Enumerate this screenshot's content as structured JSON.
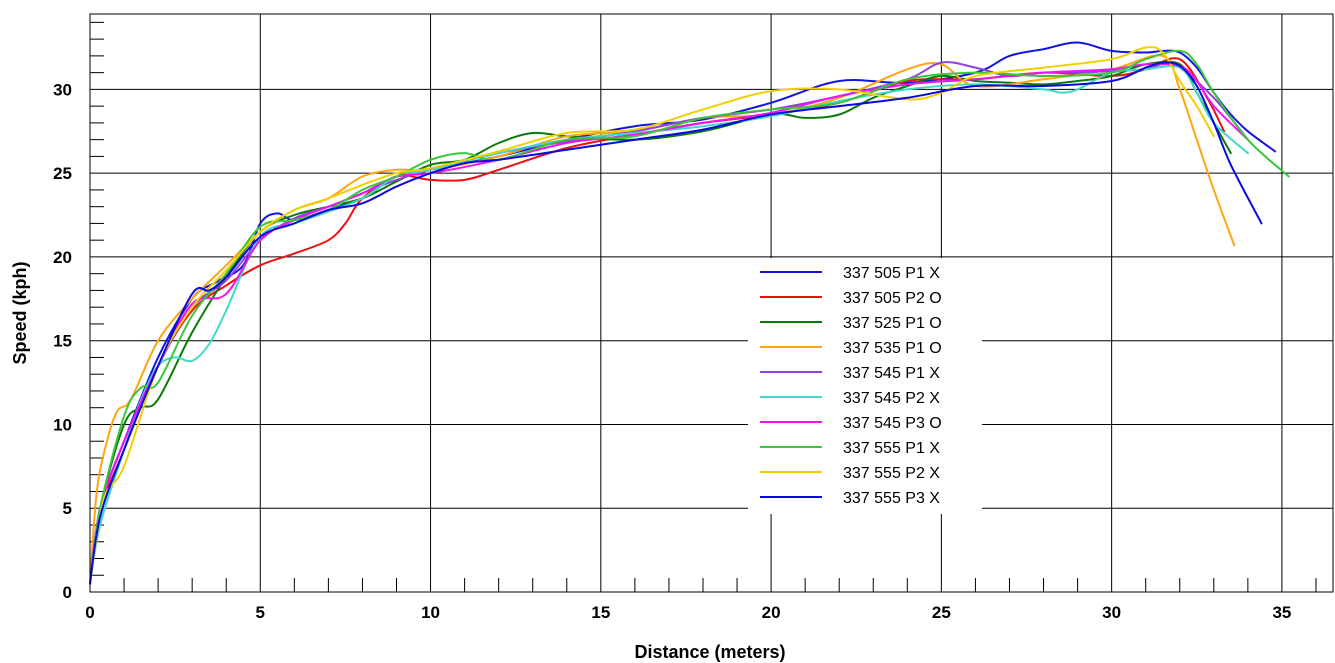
{
  "chart_data": {
    "type": "line",
    "title": "",
    "xlabel": "Distance (meters)",
    "ylabel": "Speed (kph)",
    "xlim": [
      0,
      36.5
    ],
    "ylim": [
      0,
      34.5
    ],
    "x_ticks": [
      0,
      5,
      10,
      15,
      20,
      25,
      30,
      35
    ],
    "y_ticks": [
      0,
      5,
      10,
      15,
      20,
      25,
      30
    ],
    "grid": true,
    "legend_position": "center-right",
    "series": [
      {
        "name": "337 505 P1 X",
        "color": "#1414e0",
        "x": [
          0,
          0.3,
          1,
          2,
          3,
          3.7,
          4.5,
          5,
          5.5,
          6,
          7,
          8,
          9,
          10,
          12,
          14,
          16,
          18,
          20,
          22,
          24,
          26,
          27,
          28,
          29,
          30,
          31,
          31.5,
          32,
          32.5,
          33,
          33.5,
          34,
          34.8
        ],
        "y": [
          0.5,
          5,
          9,
          14,
          17.5,
          18.5,
          19.5,
          22,
          22.6,
          22.2,
          22.8,
          23.5,
          24.8,
          25.2,
          26,
          27,
          27.8,
          28.2,
          29.2,
          30.5,
          30.4,
          31,
          32,
          32.4,
          32.8,
          32.3,
          32.2,
          32.3,
          32.2,
          31.3,
          29.8,
          28.5,
          27.5,
          26.3
        ]
      },
      {
        "name": "337 505 P2 O",
        "color": "#f01010",
        "x": [
          0,
          0.3,
          1,
          2,
          3,
          4,
          5,
          6,
          7,
          7.5,
          8,
          9,
          10,
          11,
          12,
          14,
          16,
          18,
          20,
          22,
          24,
          26,
          28,
          30,
          31,
          32,
          32.8,
          33.3
        ],
        "y": [
          0.5,
          4.8,
          8.5,
          13.5,
          16.8,
          18.3,
          19.5,
          20.2,
          21,
          22,
          23.5,
          24.8,
          24.6,
          24.6,
          25.2,
          26.5,
          27.3,
          28,
          28.5,
          29.2,
          30.5,
          30.6,
          31,
          30.8,
          31.2,
          31.8,
          29.5,
          27.5
        ]
      },
      {
        "name": "337 525 P1 O",
        "color": "#0a7a0a",
        "x": [
          0,
          0.3,
          1,
          1.5,
          2,
          3,
          4,
          5,
          6,
          7,
          8,
          9,
          10,
          11,
          12,
          13,
          14,
          16,
          18,
          20,
          21,
          22,
          23,
          24,
          25,
          26,
          27,
          28,
          29,
          30,
          31,
          32,
          32.5,
          33,
          33.5
        ],
        "y": [
          0.5,
          5,
          10,
          11,
          11.5,
          15.5,
          18.8,
          21.5,
          22.5,
          23,
          23.5,
          24.5,
          25.5,
          25.8,
          26.8,
          27.4,
          27.2,
          27,
          27.5,
          28.5,
          28.3,
          28.5,
          29.5,
          30.2,
          30.8,
          30.5,
          30.4,
          30.3,
          30.5,
          30.8,
          31.5,
          31.5,
          29.8,
          28,
          26.2
        ]
      },
      {
        "name": "337 535 P1 O",
        "color": "#ffa414",
        "x": [
          0,
          0.2,
          0.5,
          0.8,
          1.2,
          2,
          3,
          4,
          5,
          6,
          7,
          8,
          9,
          10,
          12,
          14,
          16,
          18,
          20,
          22,
          24,
          25,
          26,
          28,
          30,
          31.5,
          32,
          32.5,
          33,
          33.6
        ],
        "y": [
          0.5,
          6,
          9,
          10.8,
          11.5,
          15,
          17.5,
          19.5,
          21.5,
          22.8,
          23.5,
          24.8,
          25.2,
          25.2,
          26,
          27.2,
          27.5,
          28.3,
          28.5,
          29.5,
          31.2,
          31.5,
          30.2,
          30.6,
          31.2,
          32,
          30,
          27,
          24,
          20.7
        ]
      },
      {
        "name": "337 545 P1 X",
        "color": "#9040e0",
        "x": [
          0,
          0.3,
          1,
          2,
          3,
          4,
          5,
          6,
          7,
          8,
          9,
          10,
          12,
          14,
          16,
          18,
          20,
          22,
          24,
          25,
          26,
          27,
          28,
          29,
          30,
          31,
          31.5,
          32,
          33,
          34
        ],
        "y": [
          0.5,
          5,
          9,
          13.5,
          17,
          18.6,
          21,
          22.3,
          23,
          23.8,
          24.6,
          25.2,
          26.2,
          26.9,
          27.5,
          28.3,
          28.8,
          29.6,
          30.6,
          31.6,
          31.3,
          30.8,
          31,
          31,
          31.1,
          31.2,
          31.5,
          31.3,
          29.5,
          27
        ]
      },
      {
        "name": "337 545 P2 X",
        "color": "#40d8c8",
        "x": [
          0,
          0.3,
          1,
          1.5,
          2,
          2.5,
          3,
          3.5,
          4,
          5,
          6,
          7,
          8,
          9,
          10,
          12,
          14,
          16,
          18,
          20,
          22,
          24,
          26,
          28,
          28.5,
          29,
          30,
          31,
          32,
          32.5,
          33,
          34
        ],
        "y": [
          0.5,
          4,
          8.5,
          11.5,
          13.5,
          14,
          13.8,
          14.8,
          16.8,
          21.2,
          22,
          22.7,
          23.5,
          24.8,
          25.2,
          26.2,
          27,
          27.4,
          27.8,
          28.4,
          29.3,
          30,
          30.3,
          30,
          29.8,
          30,
          31,
          31.2,
          31.3,
          29.8,
          28,
          26.2
        ]
      },
      {
        "name": "337 545 P3 O",
        "color": "#f014f0",
        "x": [
          0,
          0.3,
          1,
          2,
          3,
          4,
          5,
          6,
          7,
          8,
          9,
          10,
          12,
          14,
          16,
          18,
          20,
          22,
          24,
          26,
          28,
          30,
          31,
          32,
          32.5,
          33,
          34
        ],
        "y": [
          0.5,
          5,
          9,
          13.5,
          17.2,
          17.8,
          21,
          22.2,
          23,
          23.8,
          24.8,
          25,
          25.8,
          26.8,
          27.3,
          28,
          28.6,
          29.6,
          30.3,
          30.6,
          31,
          31.2,
          31.5,
          31.4,
          30.5,
          29,
          27
        ]
      },
      {
        "name": "337 555 P1 X",
        "color": "#38c838",
        "x": [
          0,
          0.3,
          1,
          1.5,
          2,
          3,
          4,
          5,
          6,
          7,
          8,
          9,
          10,
          11,
          12,
          14,
          16,
          18,
          20,
          22,
          24,
          26,
          28,
          30,
          31,
          32,
          32.5,
          33,
          34,
          35.2
        ],
        "y": [
          0.5,
          5,
          10.5,
          12.2,
          12.5,
          16.5,
          19,
          21.8,
          22.2,
          22.8,
          24,
          24.8,
          25.8,
          26.2,
          25.8,
          27,
          27.2,
          28.3,
          28.8,
          29.2,
          30.6,
          31,
          30.8,
          31,
          31.8,
          32.3,
          31.5,
          29.8,
          27,
          24.8
        ]
      },
      {
        "name": "337 555 P2 X",
        "color": "#f0d000",
        "x": [
          0,
          0.4,
          1,
          2,
          3,
          4,
          5,
          6,
          7,
          8,
          9,
          10,
          12,
          14,
          16,
          18,
          20,
          22,
          24,
          25,
          26,
          28,
          30,
          31,
          31.5,
          32,
          32.5,
          33
        ],
        "y": [
          0.5,
          5.5,
          7.5,
          13.5,
          17,
          19.2,
          21.5,
          22.8,
          23.5,
          24.3,
          25,
          25.3,
          26.3,
          27.4,
          27.6,
          28.8,
          29.9,
          30,
          29.4,
          29.8,
          30.8,
          31.3,
          31.8,
          32.5,
          32.2,
          30.5,
          29,
          27.2
        ]
      },
      {
        "name": "337 555 P3 X",
        "color": "#0a0ae0",
        "x": [
          0,
          0.3,
          1,
          2,
          3,
          3.5,
          4,
          5,
          6,
          7,
          8,
          9,
          10,
          11,
          12,
          14,
          16,
          18,
          20,
          22,
          24,
          26,
          28,
          30,
          31,
          31.5,
          32,
          32.5,
          33,
          33.5,
          34.4
        ],
        "y": [
          0.5,
          4.5,
          8.5,
          13.5,
          17.8,
          18,
          18.8,
          21.2,
          22,
          22.8,
          23.2,
          24.2,
          25,
          25.6,
          25.8,
          26.4,
          27,
          27.6,
          28.5,
          29,
          29.5,
          30.2,
          30.2,
          30.5,
          31.3,
          31.6,
          31.4,
          30.2,
          28,
          25.5,
          22
        ]
      }
    ]
  }
}
